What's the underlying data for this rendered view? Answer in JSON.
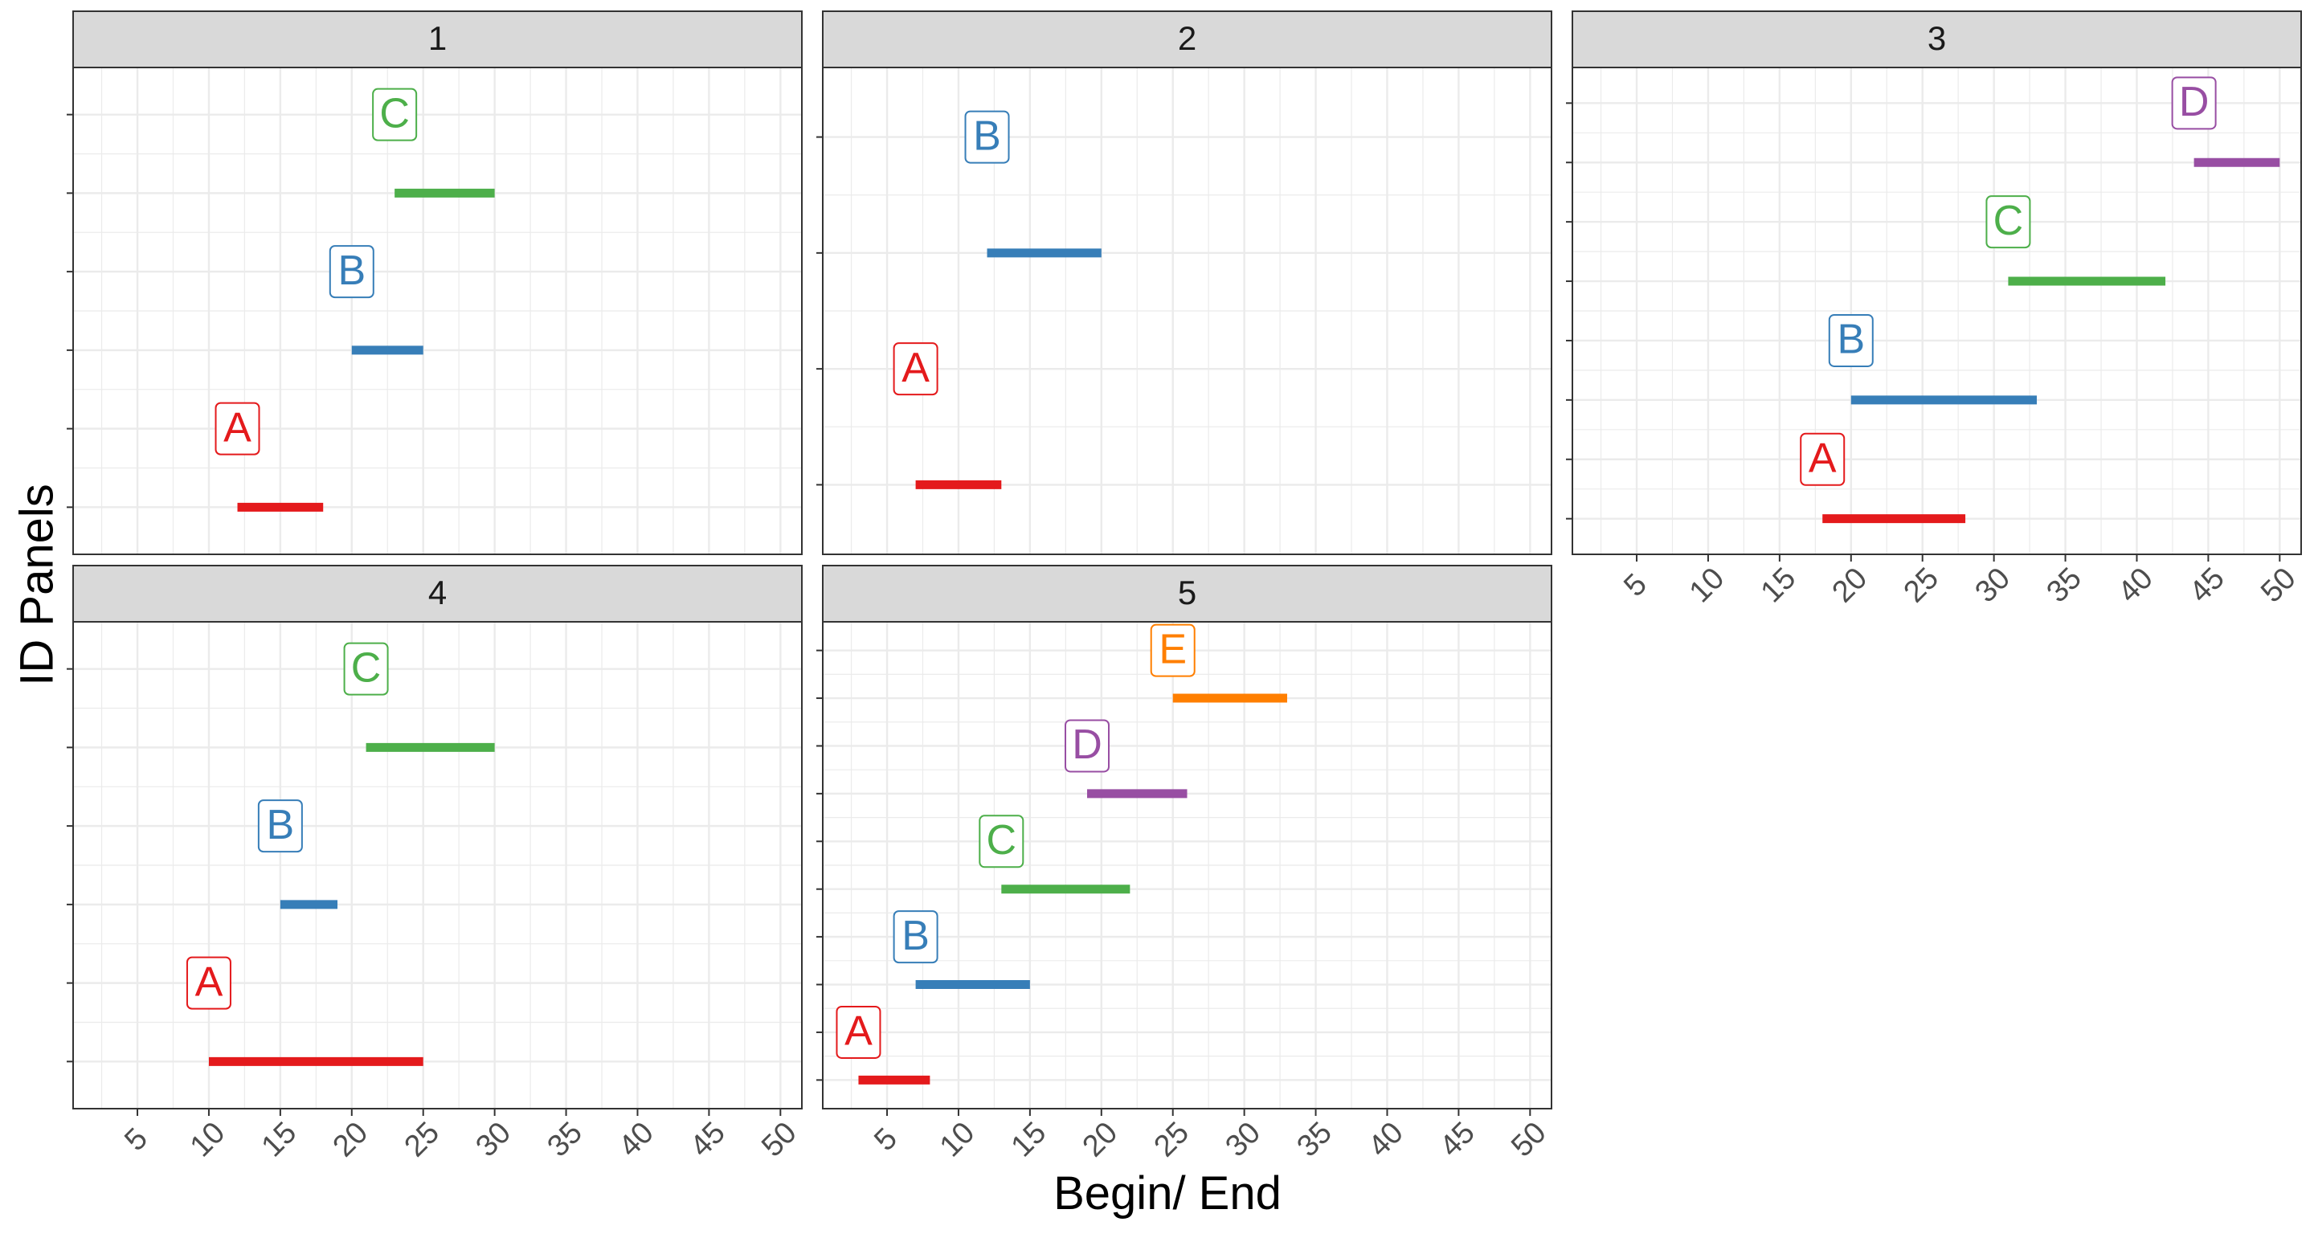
{
  "chart_data": {
    "type": "facet-segment",
    "xlabel": "Begin/ End",
    "ylabel": "ID Panels",
    "xlim": [
      0.5,
      51.5
    ],
    "x_ticks": [
      5,
      10,
      15,
      20,
      25,
      30,
      35,
      40,
      45,
      50
    ],
    "grid": true,
    "series_colors": {
      "A": "#E41A1C",
      "B": "#377EB8",
      "C": "#4DAF4A",
      "D": "#984EA3",
      "E": "#FF7F00"
    },
    "panels": [
      {
        "title": "1",
        "rows": 3,
        "segments": [
          {
            "label": "A",
            "begin": 12,
            "end": 18
          },
          {
            "label": "B",
            "begin": 20,
            "end": 25
          },
          {
            "label": "C",
            "begin": 23,
            "end": 30
          }
        ]
      },
      {
        "title": "2",
        "rows": 2,
        "segments": [
          {
            "label": "A",
            "begin": 7,
            "end": 13
          },
          {
            "label": "B",
            "begin": 12,
            "end": 20
          }
        ]
      },
      {
        "title": "3",
        "rows": 4,
        "segments": [
          {
            "label": "A",
            "begin": 18,
            "end": 28
          },
          {
            "label": "B",
            "begin": 20,
            "end": 33
          },
          {
            "label": "C",
            "begin": 31,
            "end": 42
          },
          {
            "label": "D",
            "begin": 44,
            "end": 50
          }
        ]
      },
      {
        "title": "4",
        "rows": 3,
        "segments": [
          {
            "label": "A",
            "begin": 10,
            "end": 25
          },
          {
            "label": "B",
            "begin": 15,
            "end": 19
          },
          {
            "label": "C",
            "begin": 21,
            "end": 30
          }
        ]
      },
      {
        "title": "5",
        "rows": 5,
        "segments": [
          {
            "label": "A",
            "begin": 3,
            "end": 8
          },
          {
            "label": "B",
            "begin": 7,
            "end": 15
          },
          {
            "label": "C",
            "begin": 13,
            "end": 22
          },
          {
            "label": "D",
            "begin": 19,
            "end": 26
          },
          {
            "label": "E",
            "begin": 25,
            "end": 33
          }
        ]
      }
    ]
  }
}
